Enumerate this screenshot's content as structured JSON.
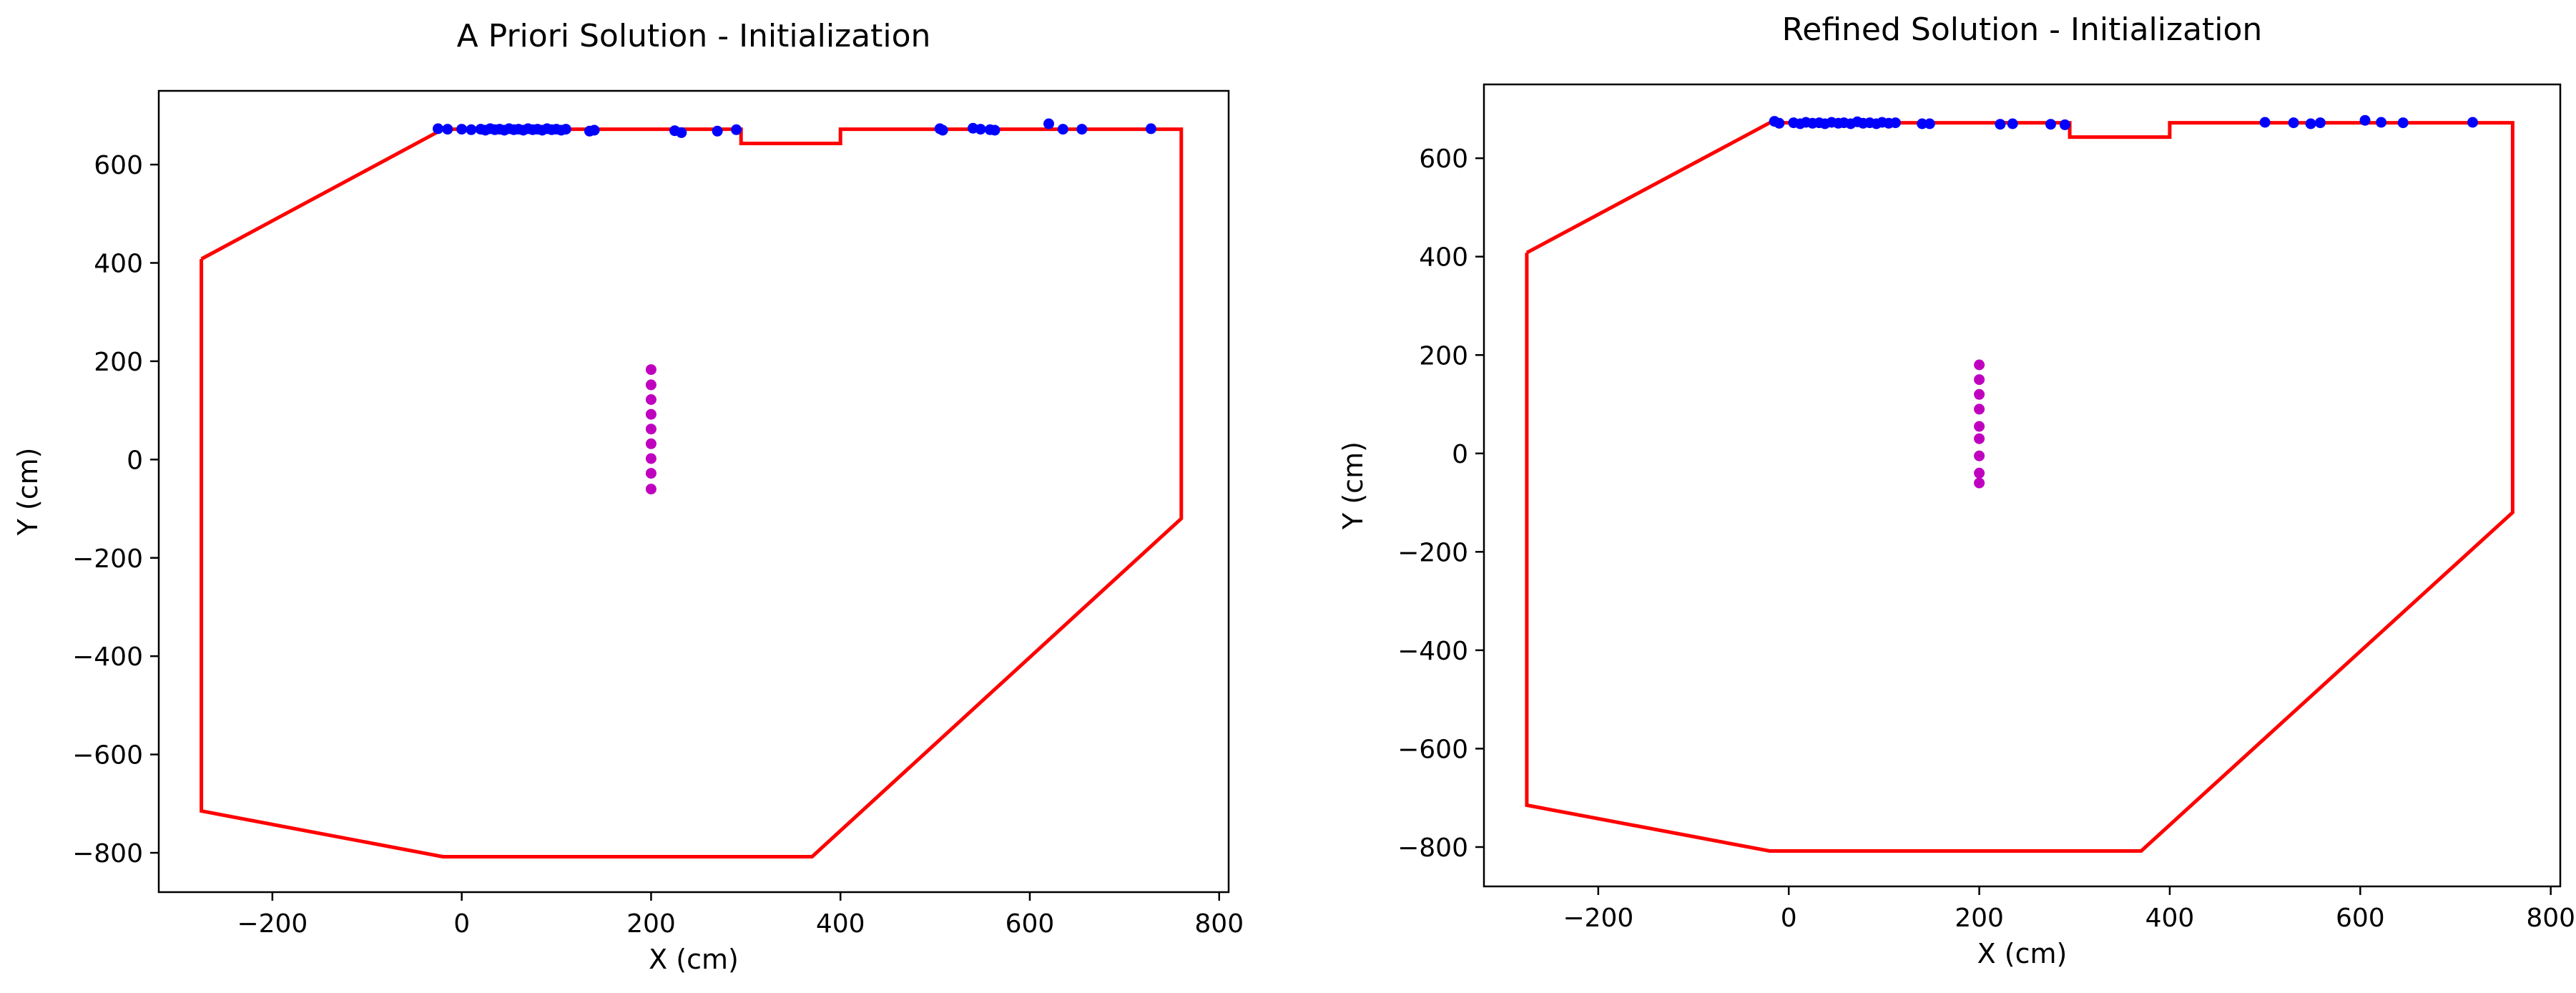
{
  "chart_data": [
    {
      "type": "scatter",
      "title": "A Priori Solution - Initialization",
      "xlabel": "X (cm)",
      "ylabel": "Y (cm)",
      "xlim": [
        -320,
        810
      ],
      "ylim": [
        -880,
        750
      ],
      "xticks": [
        -200,
        0,
        200,
        400,
        600,
        800
      ],
      "yticks": [
        -800,
        -600,
        -400,
        -200,
        0,
        200,
        400,
        600
      ],
      "grid": false,
      "series": [
        {
          "kind": "line",
          "color": "#ff0000",
          "points": [
            [
              -275,
              408
            ],
            [
              -20,
              672
            ],
            [
              295,
              672
            ],
            [
              295,
              643
            ],
            [
              400,
              643
            ],
            [
              400,
              672
            ],
            [
              760,
              672
            ],
            [
              760,
              -120
            ],
            [
              370,
              -808
            ],
            [
              -20,
              -808
            ],
            [
              -275,
              -715
            ],
            [
              -275,
              408
            ]
          ]
        },
        {
          "kind": "points",
          "color": "#0000ff",
          "points": [
            [
              -25,
              673
            ],
            [
              -15,
              672
            ],
            [
              0,
              672
            ],
            [
              10,
              671
            ],
            [
              20,
              672
            ],
            [
              25,
              670
            ],
            [
              30,
              673
            ],
            [
              35,
              671
            ],
            [
              40,
              672
            ],
            [
              45,
              670
            ],
            [
              50,
              673
            ],
            [
              55,
              671
            ],
            [
              60,
              672
            ],
            [
              65,
              670
            ],
            [
              70,
              673
            ],
            [
              75,
              671
            ],
            [
              80,
              672
            ],
            [
              85,
              670
            ],
            [
              90,
              673
            ],
            [
              95,
              671
            ],
            [
              100,
              672
            ],
            [
              105,
              670
            ],
            [
              110,
              672
            ],
            [
              135,
              668
            ],
            [
              140,
              670
            ],
            [
              225,
              669
            ],
            [
              232,
              665
            ],
            [
              270,
              668
            ],
            [
              290,
              671
            ],
            [
              505,
              673
            ],
            [
              508,
              670
            ],
            [
              540,
              674
            ],
            [
              548,
              672
            ],
            [
              558,
              671
            ],
            [
              563,
              670
            ],
            [
              620,
              683
            ],
            [
              635,
              672
            ],
            [
              655,
              672
            ],
            [
              728,
              673
            ]
          ]
        },
        {
          "kind": "points",
          "color": "#bf00bf",
          "points": [
            [
              200,
              183
            ],
            [
              200,
              152
            ],
            [
              200,
              122
            ],
            [
              200,
              92
            ],
            [
              200,
              62
            ],
            [
              200,
              32
            ],
            [
              200,
              2
            ],
            [
              200,
              -28
            ],
            [
              200,
              -60
            ]
          ]
        }
      ]
    },
    {
      "type": "scatter",
      "title": "Refined Solution - Initialization",
      "xlabel": "X (cm)",
      "ylabel": "Y (cm)",
      "xlim": [
        -320,
        810
      ],
      "ylim": [
        -880,
        750
      ],
      "xticks": [
        -200,
        0,
        200,
        400,
        600,
        800
      ],
      "yticks": [
        -800,
        -600,
        -400,
        -200,
        0,
        200,
        400,
        600
      ],
      "grid": false,
      "series": [
        {
          "kind": "line",
          "color": "#ff0000",
          "points": [
            [
              -275,
              408
            ],
            [
              -20,
              672
            ],
            [
              295,
              672
            ],
            [
              295,
              643
            ],
            [
              400,
              643
            ],
            [
              400,
              672
            ],
            [
              760,
              672
            ],
            [
              760,
              -120
            ],
            [
              370,
              -808
            ],
            [
              -20,
              -808
            ],
            [
              -275,
              -715
            ],
            [
              -275,
              408
            ]
          ]
        },
        {
          "kind": "points",
          "color": "#0000ff",
          "points": [
            [
              -15,
              675
            ],
            [
              -10,
              671
            ],
            [
              5,
              672
            ],
            [
              12,
              670
            ],
            [
              18,
              673
            ],
            [
              25,
              671
            ],
            [
              32,
              672
            ],
            [
              38,
              670
            ],
            [
              45,
              673
            ],
            [
              52,
              671
            ],
            [
              58,
              672
            ],
            [
              65,
              670
            ],
            [
              72,
              674
            ],
            [
              78,
              671
            ],
            [
              85,
              672
            ],
            [
              92,
              670
            ],
            [
              98,
              673
            ],
            [
              105,
              671
            ],
            [
              112,
              672
            ],
            [
              140,
              670
            ],
            [
              148,
              670
            ],
            [
              222,
              669
            ],
            [
              235,
              670
            ],
            [
              275,
              669
            ],
            [
              290,
              668
            ],
            [
              500,
              673
            ],
            [
              530,
              672
            ],
            [
              548,
              670
            ],
            [
              558,
              672
            ],
            [
              605,
              677
            ],
            [
              622,
              673
            ],
            [
              645,
              672
            ],
            [
              718,
              673
            ]
          ]
        },
        {
          "kind": "points",
          "color": "#bf00bf",
          "points": [
            [
              200,
              180
            ],
            [
              200,
              150
            ],
            [
              200,
              120
            ],
            [
              200,
              90
            ],
            [
              200,
              55
            ],
            [
              200,
              30
            ],
            [
              200,
              -5
            ],
            [
              200,
              -40
            ],
            [
              200,
              -60
            ]
          ]
        }
      ]
    }
  ]
}
